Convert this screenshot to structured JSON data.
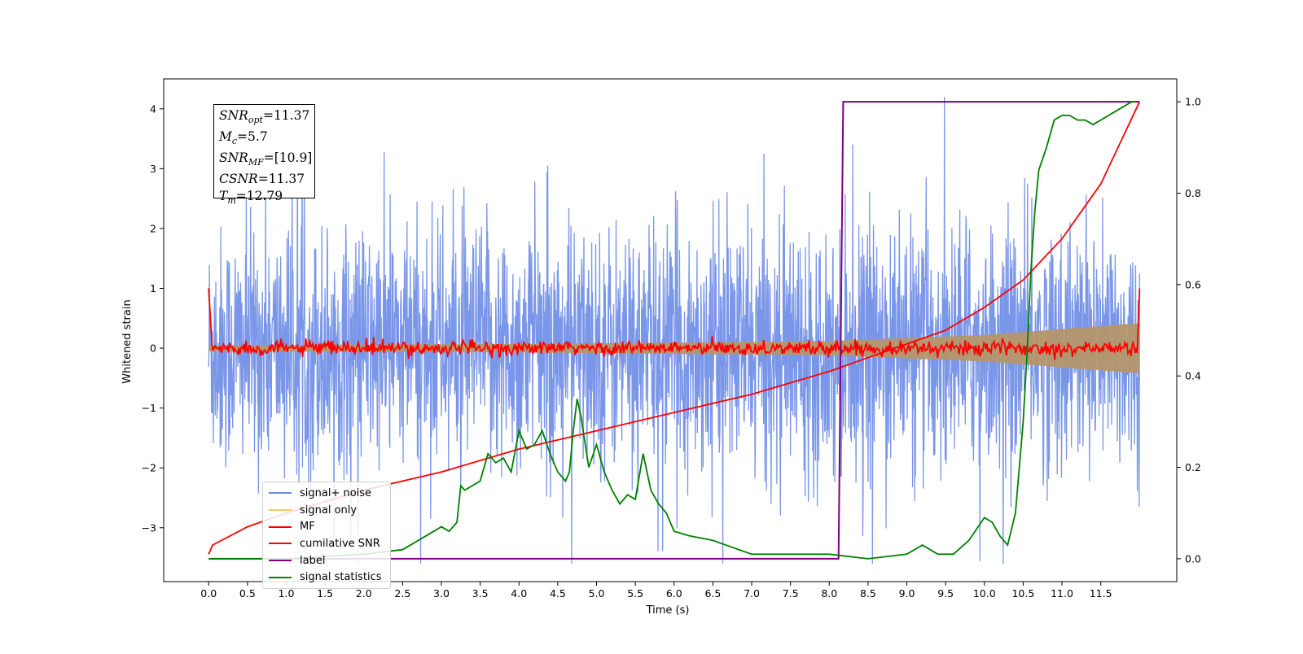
{
  "chart_data": {
    "type": "line",
    "xlabel": "Time (s)",
    "ylabel": "Whitened strain",
    "x_ticks": [
      "0.0",
      "0.5",
      "1.0",
      "1.5",
      "2.0",
      "2.5",
      "3.0",
      "3.5",
      "4.0",
      "4.5",
      "5.0",
      "5.5",
      "6.0",
      "6.5",
      "7.0",
      "7.5",
      "8.0",
      "8.5",
      "9.0",
      "9.5",
      "10.0",
      "10.5",
      "11.0",
      "11.5"
    ],
    "xlim": [
      -0.58,
      12.48
    ],
    "ylim_left": [
      -3.9,
      4.5
    ],
    "ylim_right": [
      -0.05,
      1.05
    ],
    "left_ticks": [
      4,
      3,
      2,
      1,
      0,
      -1,
      -2,
      -3
    ],
    "left_tick_labels": [
      "4",
      "3",
      "2",
      "1",
      "0",
      "−1",
      "−2",
      "−3"
    ],
    "right_ticks": [
      1.0,
      0.8,
      0.6,
      0.4,
      0.2,
      0.0
    ],
    "right_tick_labels": [
      "1.0",
      "0.8",
      "0.6",
      "0.4",
      "0.2",
      "0.0"
    ],
    "legend_position": "lower-left",
    "annotation": {
      "lines": [
        {
          "base": "SNR",
          "sub": "opt",
          "text": "=11.37"
        },
        {
          "base": "M",
          "sub": "c",
          "text": "=5.7"
        },
        {
          "base": "SNR",
          "sub": "MF",
          "text": "=[10.9]"
        },
        {
          "base": "CSNR",
          "sub": "",
          "text": "=11.37"
        },
        {
          "base": "T",
          "sub": "m",
          "text": "=12.79"
        }
      ]
    },
    "series": [
      {
        "name": "signal+ noise",
        "color": "#6b8be6",
        "axis": "left",
        "description": "noise band with amplitude ~±2.5, x from 0 to 12"
      },
      {
        "name": "signal only",
        "color": "#ffc76b",
        "axis": "left",
        "envelope": [
          [
            0,
            0.05
          ],
          [
            4,
            0.07
          ],
          [
            8,
            0.12
          ],
          [
            10,
            0.22
          ],
          [
            12,
            0.42
          ]
        ]
      },
      {
        "name": "MF",
        "color": "#ff0000",
        "axis": "left",
        "description": "noisy around 0, amplitude ~0.15, spike to 1.0 at x=0 and x=12"
      },
      {
        "name": "cumilative SNR",
        "color": "#ff0000",
        "axis": "right",
        "x": [
          0,
          0.05,
          0.5,
          1,
          2,
          3,
          4,
          5,
          6,
          7,
          8,
          8.5,
          9,
          9.5,
          10,
          10.5,
          11,
          11.5,
          12
        ],
        "y": [
          0.01,
          0.03,
          0.07,
          0.1,
          0.15,
          0.19,
          0.24,
          0.28,
          0.32,
          0.36,
          0.41,
          0.44,
          0.47,
          0.5,
          0.55,
          0.61,
          0.7,
          0.82,
          1.0
        ]
      },
      {
        "name": "label",
        "color": "#800080",
        "axis": "right",
        "x": [
          0,
          8.12,
          8.18,
          12
        ],
        "y": [
          0,
          0,
          1,
          1
        ]
      },
      {
        "name": "signal statistics",
        "color": "#008000",
        "axis": "right",
        "x": [
          0,
          1,
          2,
          2.5,
          2.8,
          3.0,
          3.1,
          3.2,
          3.25,
          3.3,
          3.5,
          3.6,
          3.7,
          3.8,
          3.9,
          4.0,
          4.1,
          4.2,
          4.3,
          4.4,
          4.5,
          4.6,
          4.65,
          4.7,
          4.75,
          4.8,
          4.9,
          5.0,
          5.1,
          5.2,
          5.3,
          5.4,
          5.5,
          5.6,
          5.7,
          5.8,
          5.9,
          6.0,
          6.2,
          6.5,
          7.0,
          7.5,
          8.0,
          8.5,
          9.0,
          9.2,
          9.4,
          9.6,
          9.8,
          10.0,
          10.1,
          10.2,
          10.3,
          10.4,
          10.5,
          10.55,
          10.6,
          10.65,
          10.7,
          10.8,
          10.9,
          11.0,
          11.1,
          11.2,
          11.3,
          11.4,
          11.5,
          11.6,
          11.7,
          11.8,
          11.9,
          11.95
        ],
        "y": [
          0.0,
          0.0,
          0.01,
          0.02,
          0.05,
          0.07,
          0.06,
          0.08,
          0.16,
          0.15,
          0.17,
          0.23,
          0.21,
          0.22,
          0.19,
          0.28,
          0.24,
          0.25,
          0.28,
          0.23,
          0.19,
          0.17,
          0.19,
          0.28,
          0.35,
          0.31,
          0.2,
          0.25,
          0.19,
          0.15,
          0.12,
          0.14,
          0.13,
          0.23,
          0.15,
          0.12,
          0.1,
          0.06,
          0.05,
          0.04,
          0.01,
          0.01,
          0.01,
          0.0,
          0.01,
          0.03,
          0.01,
          0.01,
          0.04,
          0.09,
          0.08,
          0.05,
          0.03,
          0.1,
          0.3,
          0.45,
          0.63,
          0.76,
          0.85,
          0.9,
          0.96,
          0.97,
          0.97,
          0.96,
          0.96,
          0.95,
          0.96,
          0.97,
          0.98,
          0.99,
          1.0,
          1.0
        ]
      }
    ]
  }
}
